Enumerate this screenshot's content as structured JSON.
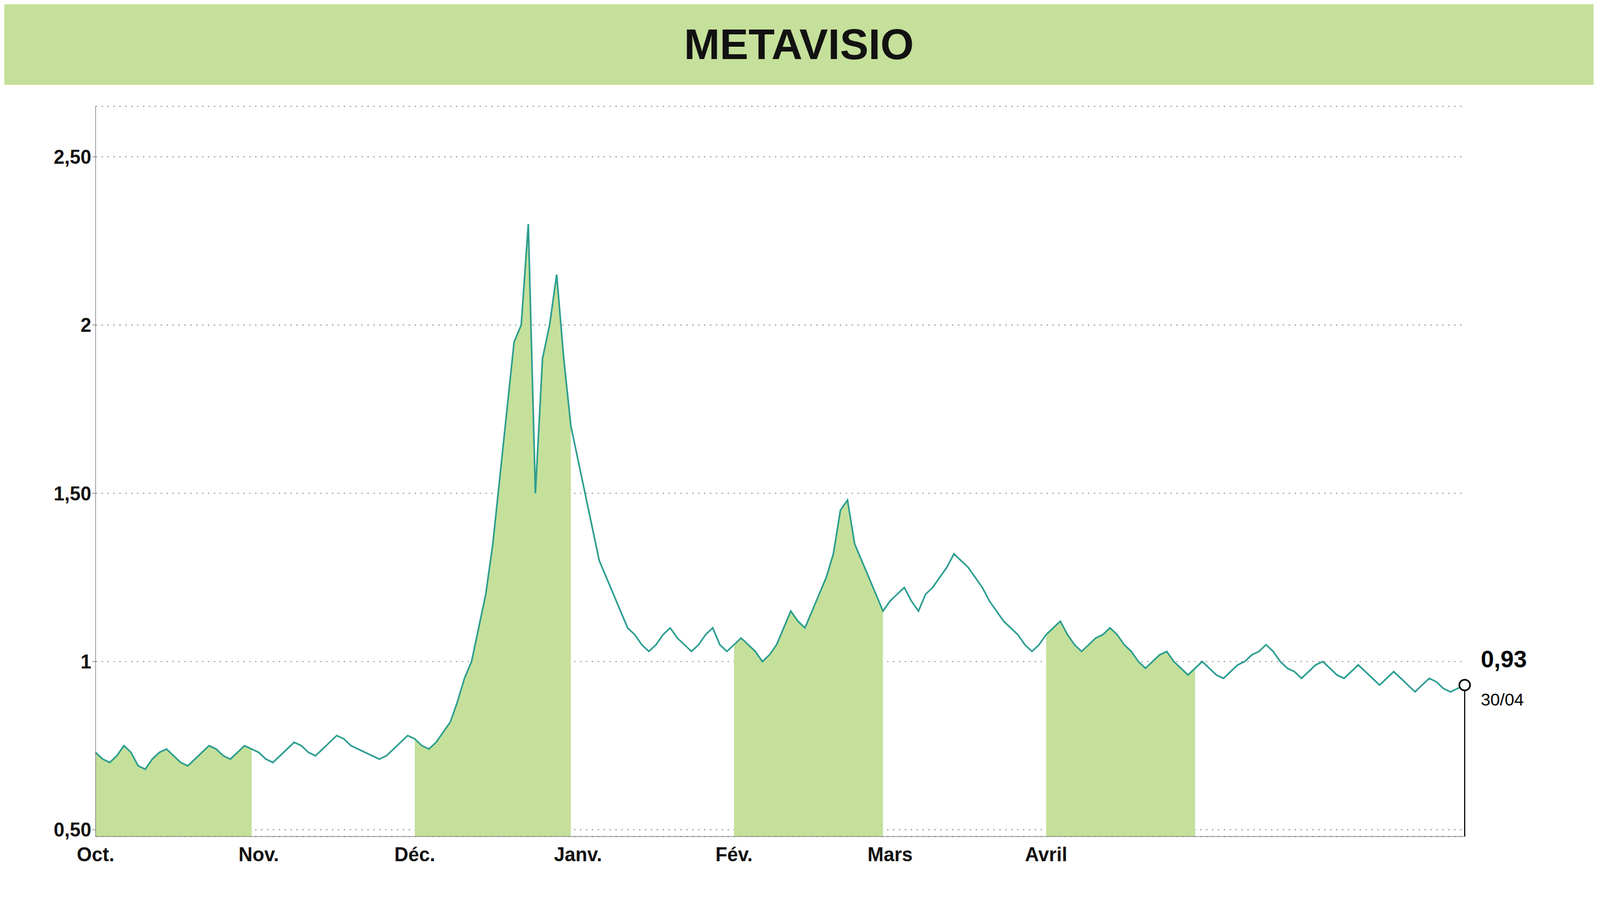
{
  "chart_data": {
    "type": "line",
    "title": "METAVISIO",
    "categories": [
      "Oct.",
      null,
      null,
      null,
      null,
      null,
      null,
      null,
      null,
      null,
      null,
      null,
      null,
      null,
      null,
      null,
      null,
      null,
      null,
      null,
      null,
      null,
      null,
      "Nov.",
      null,
      null,
      null,
      null,
      null,
      null,
      null,
      null,
      null,
      null,
      null,
      null,
      null,
      null,
      null,
      null,
      null,
      null,
      null,
      null,
      null,
      "Déc.",
      null,
      null,
      null,
      null,
      null,
      null,
      null,
      null,
      null,
      null,
      null,
      null,
      null,
      null,
      null,
      null,
      null,
      null,
      null,
      null,
      null,
      null,
      "Janv.",
      null,
      null,
      null,
      null,
      null,
      null,
      null,
      null,
      null,
      null,
      null,
      null,
      null,
      null,
      null,
      null,
      null,
      null,
      null,
      null,
      null,
      "Fév.",
      null,
      null,
      null,
      null,
      null,
      null,
      null,
      null,
      null,
      null,
      null,
      null,
      null,
      null,
      null,
      null,
      null,
      null,
      null,
      null,
      null,
      "Mars",
      null,
      null,
      null,
      null,
      null,
      null,
      null,
      null,
      null,
      null,
      null,
      null,
      null,
      null,
      null,
      null,
      null,
      null,
      null,
      null,
      null,
      "Avril",
      null,
      null,
      null,
      null,
      null,
      null,
      null,
      null,
      null,
      null,
      null,
      null,
      null,
      null,
      null,
      null,
      null,
      null,
      null,
      null,
      null,
      null,
      null,
      null,
      null,
      null,
      null,
      null,
      null,
      null,
      null,
      null,
      null,
      null,
      null,
      null,
      null,
      null,
      null,
      null,
      null,
      null,
      null,
      null,
      null,
      null,
      null,
      null,
      null,
      null,
      null,
      null,
      null,
      null,
      null,
      null,
      null,
      null,
      null
    ],
    "series": [
      {
        "type": "area",
        "color": "#c5e09a",
        "values": [
          0.73,
          0.71,
          0.7,
          0.72,
          0.75,
          0.73,
          0.69,
          0.68,
          0.71,
          0.73,
          0.74,
          0.72,
          0.7,
          0.69,
          0.71,
          0.73,
          0.75,
          0.74,
          0.72,
          0.71,
          0.73,
          0.75,
          0.74,
          null,
          null,
          null,
          null,
          null,
          null,
          null,
          null,
          null,
          null,
          null,
          null,
          null,
          null,
          null,
          null,
          null,
          null,
          null,
          null,
          null,
          null,
          0.77,
          0.75,
          0.74,
          0.76,
          0.79,
          0.82,
          0.88,
          0.95,
          1.0,
          1.1,
          1.2,
          1.35,
          1.55,
          1.75,
          1.95,
          2.0,
          2.3,
          1.5,
          1.9,
          2.0,
          2.15,
          1.9,
          1.7,
          null,
          null,
          null,
          null,
          null,
          null,
          null,
          null,
          null,
          null,
          null,
          null,
          null,
          null,
          null,
          null,
          null,
          null,
          null,
          null,
          null,
          null,
          1.05,
          1.07,
          1.05,
          1.03,
          1.0,
          1.02,
          1.05,
          1.1,
          1.15,
          1.12,
          1.1,
          1.15,
          1.2,
          1.25,
          1.32,
          1.45,
          1.48,
          1.35,
          1.3,
          1.25,
          1.2,
          1.15,
          null,
          null,
          null,
          null,
          null,
          null,
          null,
          null,
          null,
          null,
          null,
          null,
          null,
          null,
          null,
          null,
          null,
          null,
          null,
          null,
          null,
          null,
          1.08,
          1.1,
          1.12,
          1.08,
          1.05,
          1.03,
          1.05,
          1.07,
          1.08,
          1.1,
          1.08,
          1.05,
          1.03,
          1.0,
          0.98,
          1.0,
          1.02,
          1.03,
          1.0,
          0.98,
          0.96,
          0.98,
          null,
          null,
          null,
          null,
          null,
          null,
          null,
          null,
          null,
          null,
          null,
          null,
          null,
          null,
          null,
          null,
          null,
          null,
          null,
          null,
          null,
          null,
          null,
          null,
          null,
          null,
          null,
          null,
          null,
          null,
          null,
          null,
          null,
          null,
          null,
          null,
          null,
          null
        ]
      },
      {
        "type": "line",
        "color": "#2a9d8f",
        "values": [
          0.73,
          0.71,
          0.7,
          0.72,
          0.75,
          0.73,
          0.69,
          0.68,
          0.71,
          0.73,
          0.74,
          0.72,
          0.7,
          0.69,
          0.71,
          0.73,
          0.75,
          0.74,
          0.72,
          0.71,
          0.73,
          0.75,
          0.74,
          0.73,
          0.71,
          0.7,
          0.72,
          0.74,
          0.76,
          0.75,
          0.73,
          0.72,
          0.74,
          0.76,
          0.78,
          0.77,
          0.75,
          0.74,
          0.73,
          0.72,
          0.71,
          0.72,
          0.74,
          0.76,
          0.78,
          0.77,
          0.75,
          0.74,
          0.76,
          0.79,
          0.82,
          0.88,
          0.95,
          1.0,
          1.1,
          1.2,
          1.35,
          1.55,
          1.75,
          1.95,
          2.0,
          2.3,
          1.5,
          1.9,
          2.0,
          2.15,
          1.9,
          1.7,
          1.6,
          1.5,
          1.4,
          1.3,
          1.25,
          1.2,
          1.15,
          1.1,
          1.08,
          1.05,
          1.03,
          1.05,
          1.08,
          1.1,
          1.07,
          1.05,
          1.03,
          1.05,
          1.08,
          1.1,
          1.05,
          1.03,
          1.05,
          1.07,
          1.05,
          1.03,
          1.0,
          1.02,
          1.05,
          1.1,
          1.15,
          1.12,
          1.1,
          1.15,
          1.2,
          1.25,
          1.32,
          1.45,
          1.48,
          1.35,
          1.3,
          1.25,
          1.2,
          1.15,
          1.18,
          1.2,
          1.22,
          1.18,
          1.15,
          1.2,
          1.22,
          1.25,
          1.28,
          1.32,
          1.3,
          1.28,
          1.25,
          1.22,
          1.18,
          1.15,
          1.12,
          1.1,
          1.08,
          1.05,
          1.03,
          1.05,
          1.08,
          1.1,
          1.12,
          1.08,
          1.05,
          1.03,
          1.05,
          1.07,
          1.08,
          1.1,
          1.08,
          1.05,
          1.03,
          1.0,
          0.98,
          1.0,
          1.02,
          1.03,
          1.0,
          0.98,
          0.96,
          0.98,
          1.0,
          0.98,
          0.96,
          0.95,
          0.97,
          0.99,
          1.0,
          1.02,
          1.03,
          1.05,
          1.03,
          1.0,
          0.98,
          0.97,
          0.95,
          0.97,
          0.99,
          1.0,
          0.98,
          0.96,
          0.95,
          0.97,
          0.99,
          0.97,
          0.95,
          0.93,
          0.95,
          0.97,
          0.95,
          0.93,
          0.91,
          0.93,
          0.95,
          0.94,
          0.92,
          0.91,
          0.92,
          0.93
        ]
      }
    ],
    "ylim": [
      0.48,
      2.65
    ],
    "yticks": [
      {
        "value": 0.5,
        "label": "0,50"
      },
      1,
      {
        "value": 1.5,
        "label": "1,50"
      },
      2,
      {
        "value": 2.5,
        "label": "2,50"
      }
    ],
    "grid": true,
    "annotations": [
      "0,93",
      "30/04"
    ]
  }
}
